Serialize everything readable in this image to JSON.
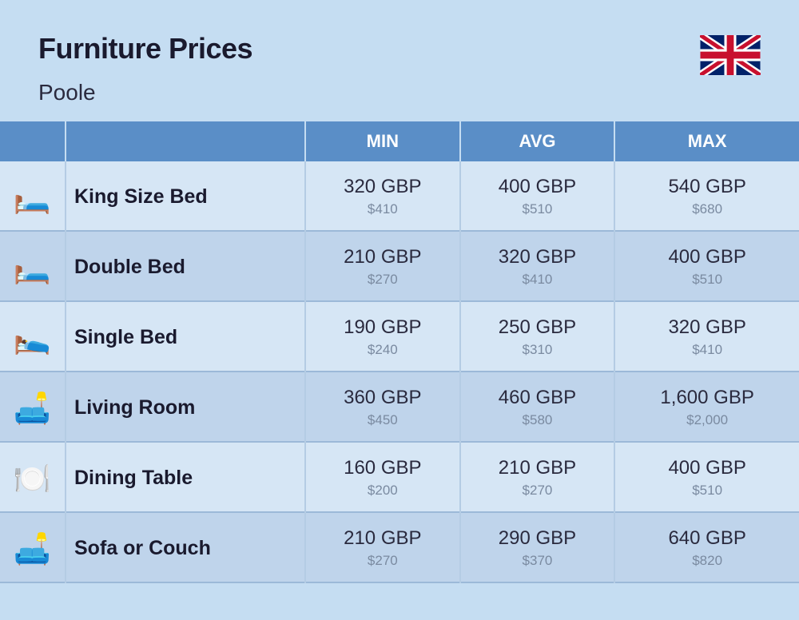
{
  "header": {
    "title": "Furniture Prices",
    "subtitle": "Poole",
    "flag_country": "UK"
  },
  "columns": {
    "min": "MIN",
    "avg": "AVG",
    "max": "MAX"
  },
  "table": {
    "header_bg": "#5a8ec7",
    "header_fg": "#ffffff",
    "row_alt_colors": [
      "#d6e6f5",
      "#bfd4eb"
    ],
    "border_color": "#9cb9d8"
  },
  "rows": [
    {
      "icon": "🛏️",
      "icon_name": "king-bed-icon",
      "label": "King Size Bed",
      "min_gbp": "320 GBP",
      "min_usd": "$410",
      "avg_gbp": "400 GBP",
      "avg_usd": "$510",
      "max_gbp": "540 GBP",
      "max_usd": "$680"
    },
    {
      "icon": "🛏️",
      "icon_name": "double-bed-icon",
      "label": "Double Bed",
      "min_gbp": "210 GBP",
      "min_usd": "$270",
      "avg_gbp": "320 GBP",
      "avg_usd": "$410",
      "max_gbp": "400 GBP",
      "max_usd": "$510"
    },
    {
      "icon": "🛌",
      "icon_name": "single-bed-icon",
      "label": "Single Bed",
      "min_gbp": "190 GBP",
      "min_usd": "$240",
      "avg_gbp": "250 GBP",
      "avg_usd": "$310",
      "max_gbp": "320 GBP",
      "max_usd": "$410"
    },
    {
      "icon": "🛋️",
      "icon_name": "living-room-icon",
      "label": "Living Room",
      "min_gbp": "360 GBP",
      "min_usd": "$450",
      "avg_gbp": "460 GBP",
      "avg_usd": "$580",
      "max_gbp": "1,600 GBP",
      "max_usd": "$2,000"
    },
    {
      "icon": "🍽️",
      "icon_name": "dining-table-icon",
      "label": "Dining Table",
      "min_gbp": "160 GBP",
      "min_usd": "$200",
      "avg_gbp": "210 GBP",
      "avg_usd": "$270",
      "max_gbp": "400 GBP",
      "max_usd": "$510"
    },
    {
      "icon": "🛋️",
      "icon_name": "sofa-icon",
      "label": "Sofa or Couch",
      "min_gbp": "210 GBP",
      "min_usd": "$270",
      "avg_gbp": "290 GBP",
      "avg_usd": "$370",
      "max_gbp": "640 GBP",
      "max_usd": "$820"
    }
  ]
}
